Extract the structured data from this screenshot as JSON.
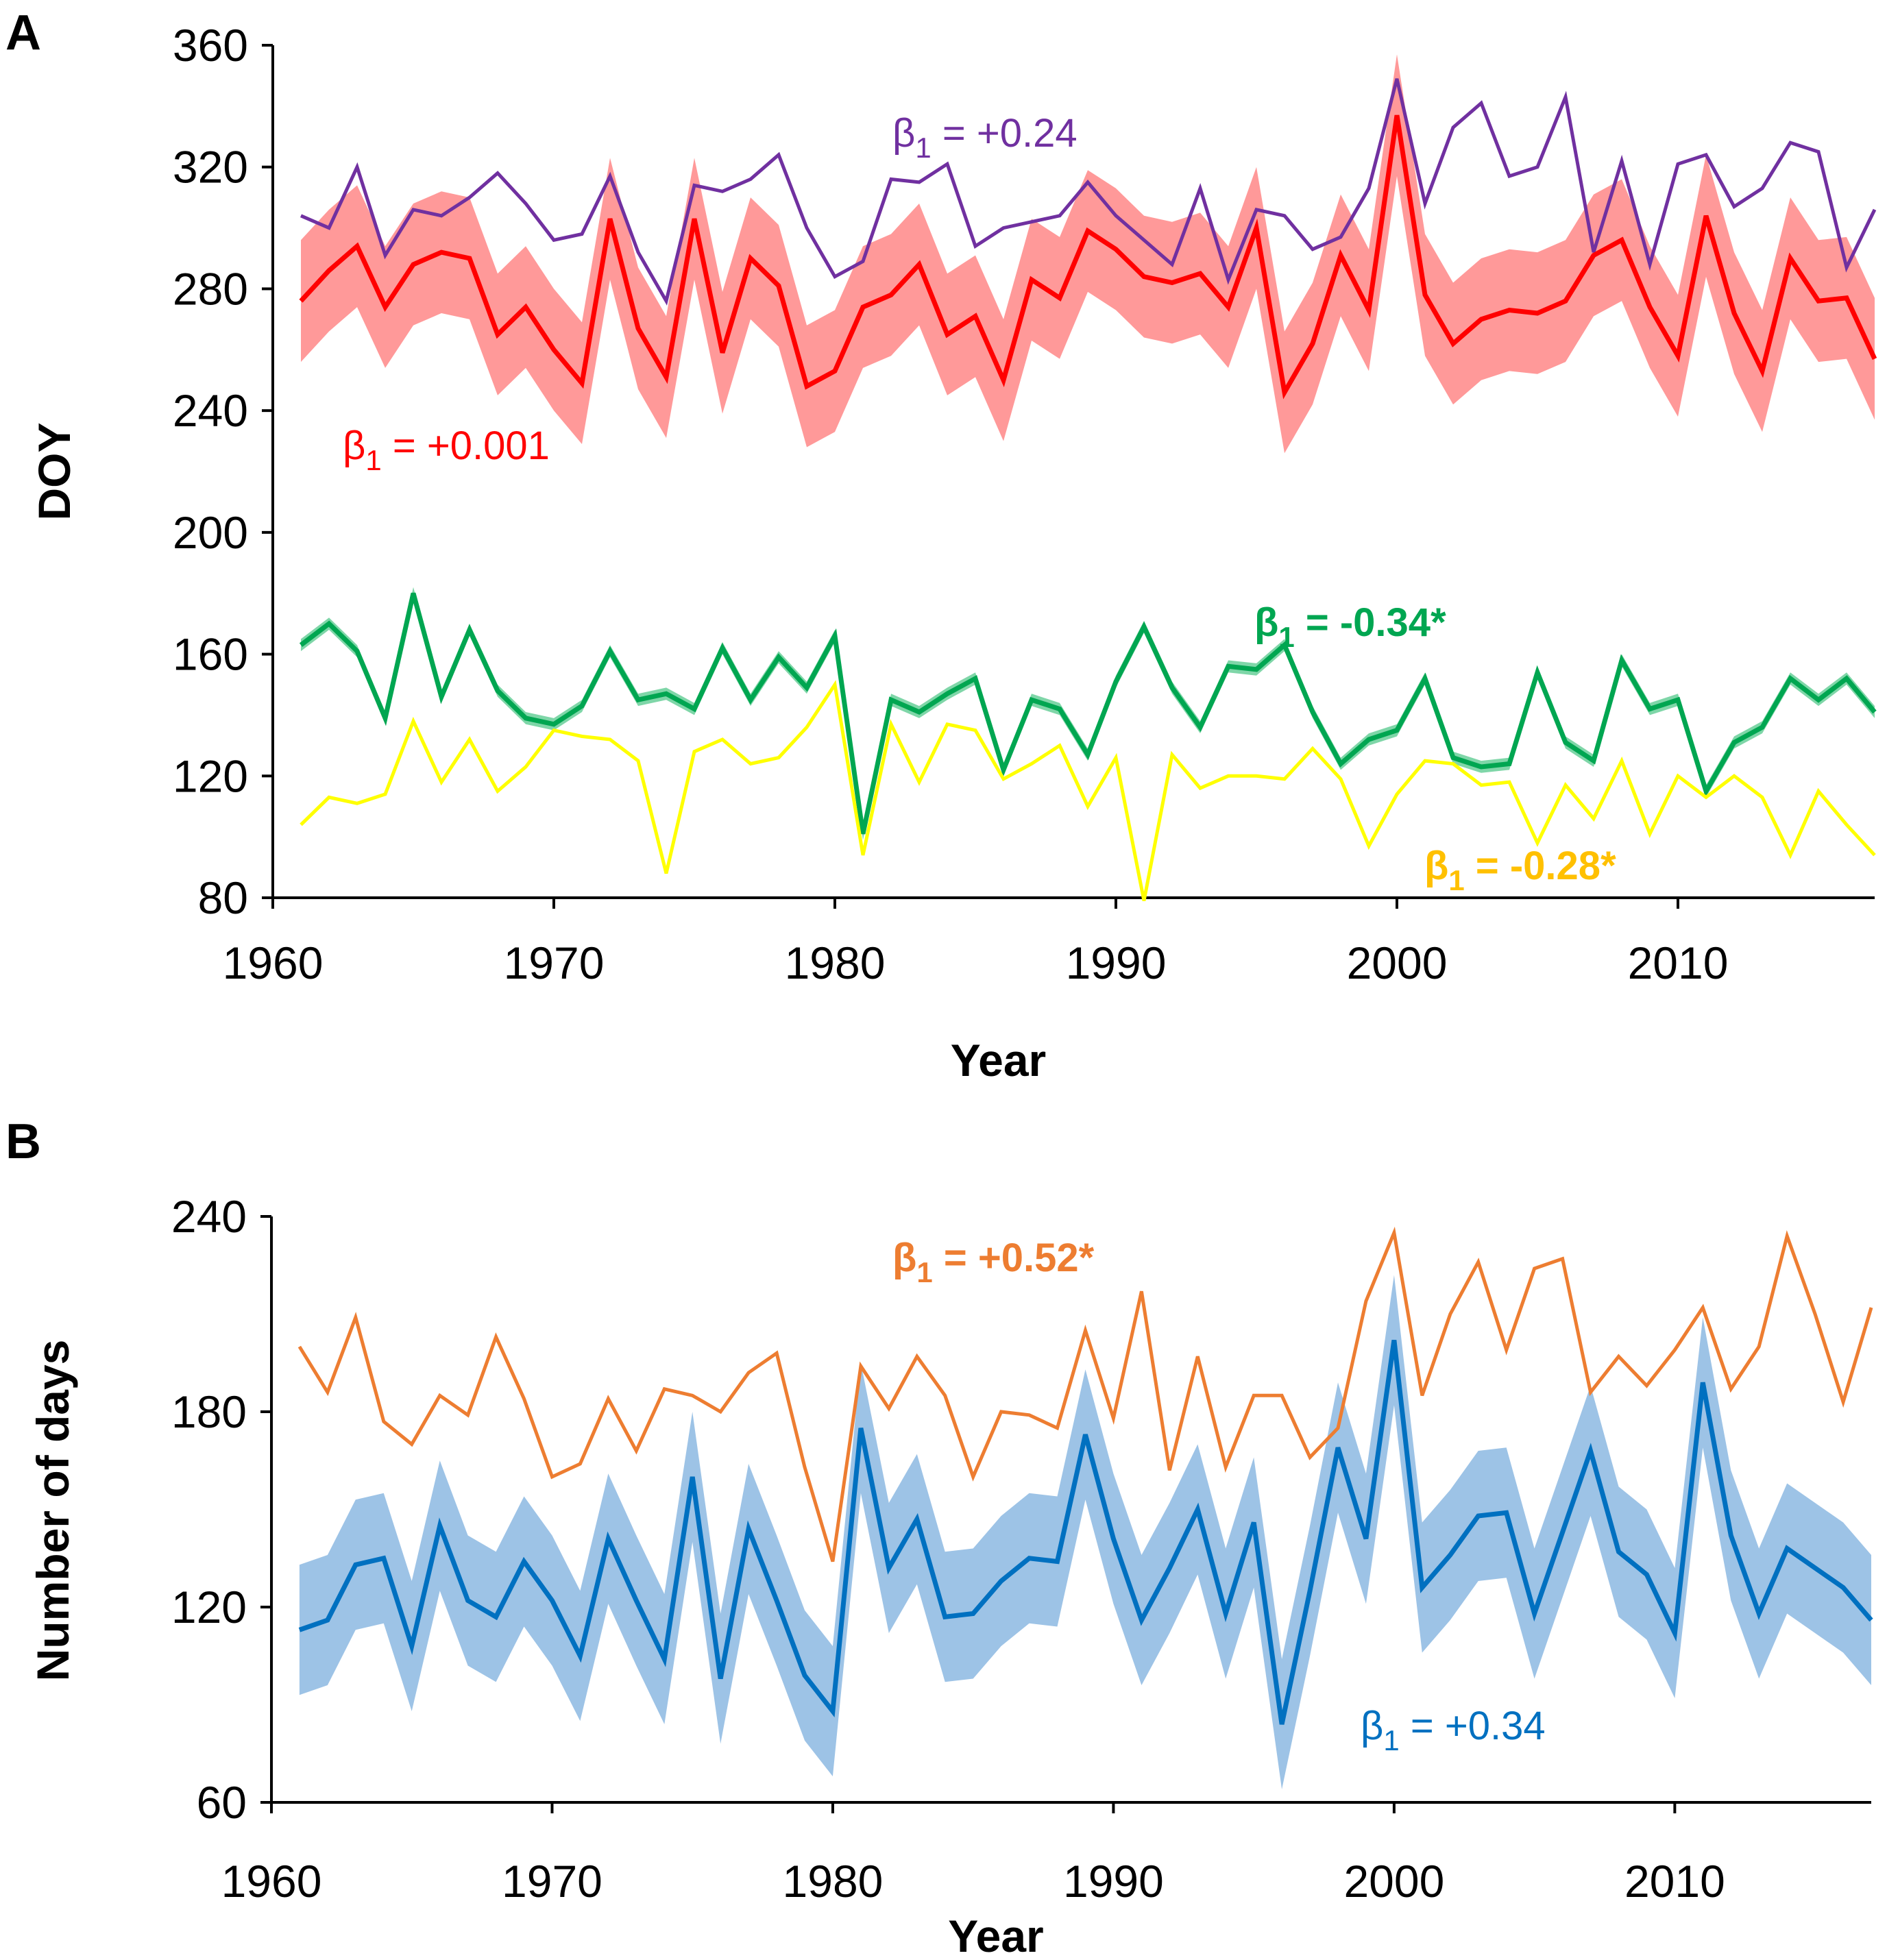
{
  "chart_data": [
    {
      "panel_label": "A",
      "type": "line",
      "xlabel": "Year",
      "ylabel": "DOY",
      "xlim": [
        1960,
        2017
      ],
      "ylim": [
        80,
        360
      ],
      "xticks": [
        1960,
        1970,
        1980,
        1990,
        2000,
        2010
      ],
      "yticks": [
        80,
        120,
        160,
        200,
        240,
        280,
        320,
        360
      ],
      "x_start": 1961,
      "series": [
        {
          "name": "purple",
          "color": "#7030A0",
          "annotation": {
            "prefix": "β",
            "subscript": "1",
            "value": " = +0.24",
            "bold": false,
            "color": "#7030A0"
          },
          "values": [
            304,
            300,
            320,
            291,
            306,
            304,
            310,
            318,
            308,
            296,
            298,
            317,
            292,
            276,
            314,
            312,
            316,
            324,
            300,
            284,
            289,
            316,
            315,
            321,
            294,
            300,
            302,
            304,
            315,
            304,
            296,
            288,
            313,
            283,
            306,
            304,
            293,
            297,
            313,
            349,
            308,
            333,
            341,
            317,
            320,
            343,
            292,
            322,
            288,
            321,
            324,
            307,
            313,
            328,
            325,
            287,
            306
          ]
        },
        {
          "name": "red",
          "color": "#FF0000",
          "band_color": "#FF9999",
          "annotation": {
            "prefix": "β",
            "subscript": "1",
            "value": " = +0.001",
            "bold": false,
            "color": "#FF0000"
          },
          "values": [
            276,
            286,
            294,
            274,
            288,
            292,
            290,
            265,
            274,
            260,
            249,
            303,
            267,
            251,
            303,
            259,
            290,
            281,
            248,
            253,
            274,
            278,
            288,
            265,
            271,
            250,
            283,
            277,
            299,
            293,
            284,
            282,
            285,
            274,
            300,
            246,
            262,
            291,
            273,
            337,
            278,
            262,
            270,
            273,
            272,
            276,
            291,
            296,
            274,
            258,
            304,
            272,
            253,
            290,
            276,
            277,
            257
          ],
          "band_half_width": 20
        },
        {
          "name": "green",
          "color": "#00A651",
          "band_color": "#7FD6A8",
          "annotation": {
            "prefix": "β",
            "subscript": "1",
            "value": " = -0.34*",
            "bold": true,
            "color": "#00A651"
          },
          "values": [
            163,
            170,
            161,
            139,
            180,
            146,
            168,
            148,
            139,
            137,
            143,
            161,
            145,
            147,
            142,
            162,
            145,
            159,
            149,
            166,
            101,
            145,
            141,
            147,
            152,
            122,
            145,
            142,
            127,
            151,
            169,
            149,
            136,
            156,
            155,
            163,
            141,
            124,
            132,
            135,
            152,
            126,
            123,
            124,
            154,
            131,
            125,
            158,
            142,
            145,
            115,
            131,
            136,
            152,
            145,
            152,
            141
          ],
          "band_half_width": 2
        },
        {
          "name": "yellow",
          "color": "#FFFF00",
          "annotation": {
            "prefix": "β",
            "subscript": "1",
            "value": " = -0.28*",
            "bold": true,
            "color": "#FFC000"
          },
          "values": [
            104,
            113,
            111,
            114,
            138,
            118,
            132,
            115,
            123,
            135,
            133,
            132,
            125,
            88,
            128,
            132,
            124,
            126,
            136,
            150,
            94,
            137,
            118,
            137,
            135,
            119,
            124,
            130,
            110,
            126,
            79,
            127,
            116,
            120,
            120,
            119,
            129,
            119,
            97,
            114,
            125,
            124,
            117,
            118,
            98,
            117,
            106,
            125,
            101,
            120,
            113,
            120,
            113,
            94,
            115,
            104,
            94
          ]
        }
      ]
    },
    {
      "panel_label": "B",
      "type": "line",
      "xlabel": "Year",
      "ylabel": "Number of days",
      "xlim": [
        1960,
        2017
      ],
      "ylim": [
        60,
        240
      ],
      "xticks": [
        1960,
        1970,
        1980,
        1990,
        2000,
        2010
      ],
      "yticks": [
        60,
        120,
        180,
        240
      ],
      "x_start": 1961,
      "series": [
        {
          "name": "orange",
          "color": "#ED7D31",
          "annotation": {
            "prefix": "β",
            "subscript": "1",
            "value": " = +0.52*",
            "bold": true,
            "color": "#ED7D31"
          },
          "values": [
            200,
            186,
            209,
            177,
            170,
            185,
            179,
            203,
            184,
            160,
            164,
            184,
            168,
            187,
            185,
            180,
            192,
            198,
            163,
            134,
            194,
            181,
            197,
            185,
            160,
            180,
            179,
            175,
            205,
            178,
            217,
            162,
            197,
            163,
            185,
            185,
            166,
            175,
            214,
            235,
            185,
            210,
            226,
            199,
            224,
            227,
            186,
            197,
            188,
            199,
            212,
            187,
            200,
            234,
            210,
            183,
            212
          ]
        },
        {
          "name": "blue",
          "color": "#0070C0",
          "band_color": "#9DC3E6",
          "annotation": {
            "prefix": "β",
            "subscript": "1",
            "value": " = +0.34",
            "bold": false,
            "color": "#0070C0"
          },
          "values": [
            113,
            116,
            133,
            135,
            108,
            145,
            122,
            117,
            134,
            122,
            105,
            141,
            122,
            104,
            160,
            98,
            144,
            122,
            99,
            88,
            175,
            132,
            147,
            117,
            118,
            128,
            135,
            134,
            173,
            141,
            116,
            132,
            150,
            118,
            146,
            84,
            125,
            169,
            141,
            202,
            126,
            136,
            148,
            149,
            118,
            143,
            168,
            137,
            130,
            112,
            189,
            142,
            118,
            138,
            132,
            126,
            116
          ],
          "band_half_width": 20
        }
      ]
    }
  ]
}
